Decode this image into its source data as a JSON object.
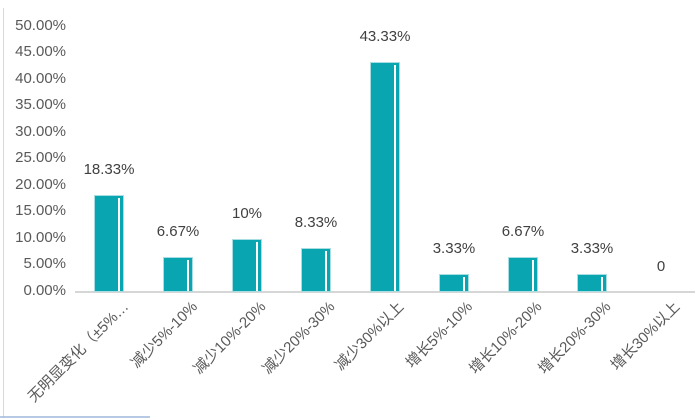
{
  "chart_data": {
    "type": "bar",
    "title": "",
    "xlabel": "",
    "ylabel": "",
    "categories": [
      "无明显变化（±5%…",
      "减少5%-10%",
      "减少10%-20%",
      "减少20%-30%",
      "减少30%以上",
      "增长5%-10%",
      "增长10%-20%",
      "增长20%-30%",
      "增长30%以上"
    ],
    "values": [
      18.33,
      6.67,
      10,
      8.33,
      43.33,
      3.33,
      6.67,
      3.33,
      0
    ],
    "data_labels": [
      "18.33%",
      "6.67%",
      "10%",
      "8.33%",
      "43.33%",
      "3.33%",
      "6.67%",
      "3.33%",
      "0"
    ],
    "y_tick_labels": [
      "0.00%",
      "5.00%",
      "10.00%",
      "15.00%",
      "20.00%",
      "25.00%",
      "30.00%",
      "35.00%",
      "40.00%",
      "45.00%",
      "50.00%"
    ],
    "ylim": [
      0,
      50
    ],
    "grid": false,
    "legend": "none",
    "colors": {
      "bar_fill": "#09a6b2",
      "bar_border": "#a8dde2",
      "bar_highlight": "#ffffff",
      "axis_line": "#d6d6d6",
      "tick_label": "#595959",
      "data_label": "#404040"
    }
  }
}
